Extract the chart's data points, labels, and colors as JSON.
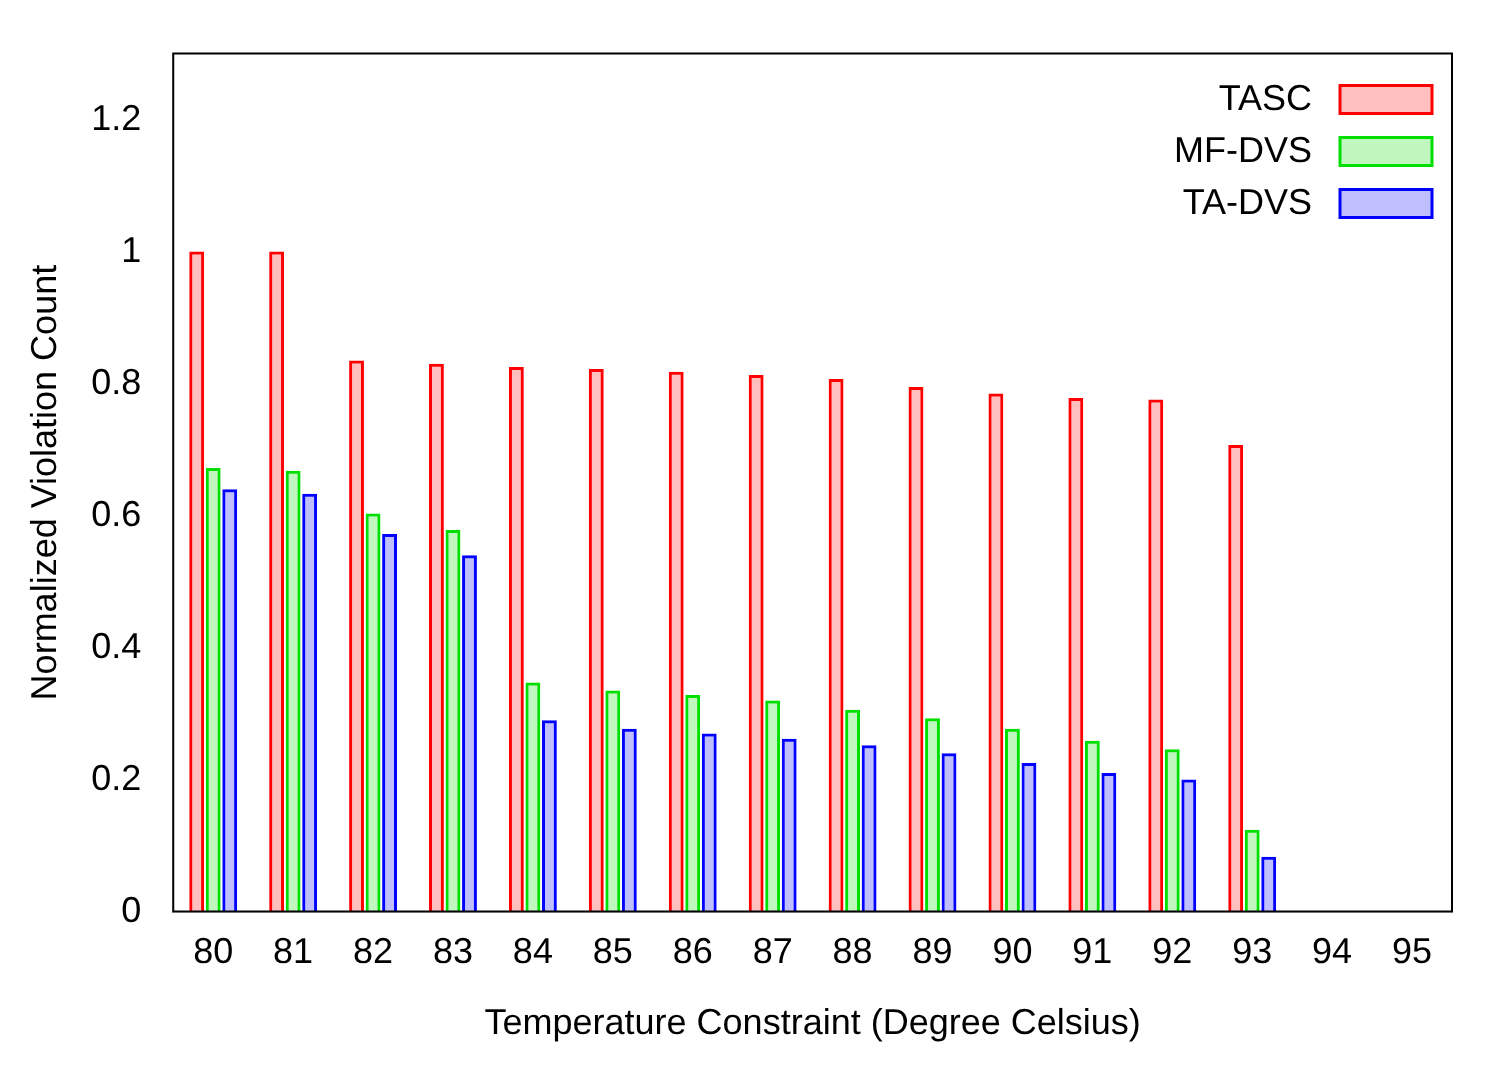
{
  "chart_data": {
    "type": "bar",
    "xlabel": "Temperature Constraint (Degree Celsius)",
    "ylabel": "Normalized Violation Count",
    "categories": [
      "80",
      "81",
      "82",
      "83",
      "84",
      "85",
      "86",
      "87",
      "88",
      "89",
      "90",
      "91",
      "92",
      "93",
      "94",
      "95"
    ],
    "series": [
      {
        "name": "TASC",
        "color": "#ff0000",
        "values": [
          1,
          1,
          0.835,
          0.83,
          0.825,
          0.822,
          0.818,
          0.813,
          0.807,
          0.795,
          0.785,
          0.778,
          0.776,
          0.707,
          0,
          0
        ]
      },
      {
        "name": "MF-DVS",
        "color": "#00e000",
        "values": [
          0.672,
          0.668,
          0.603,
          0.578,
          0.347,
          0.335,
          0.328,
          0.32,
          0.306,
          0.293,
          0.277,
          0.259,
          0.246,
          0.124,
          0,
          0
        ]
      },
      {
        "name": "TA-DVS",
        "color": "#0000ff",
        "values": [
          0.64,
          0.633,
          0.572,
          0.54,
          0.29,
          0.277,
          0.27,
          0.262,
          0.252,
          0.24,
          0.225,
          0.21,
          0.2,
          0.083,
          0,
          0
        ]
      }
    ],
    "ylim": [
      0,
      1.3
    ],
    "yticks": [
      0,
      0.2,
      0.4,
      0.6,
      0.8,
      1,
      1.2
    ],
    "legend": "top right",
    "grid": false
  }
}
